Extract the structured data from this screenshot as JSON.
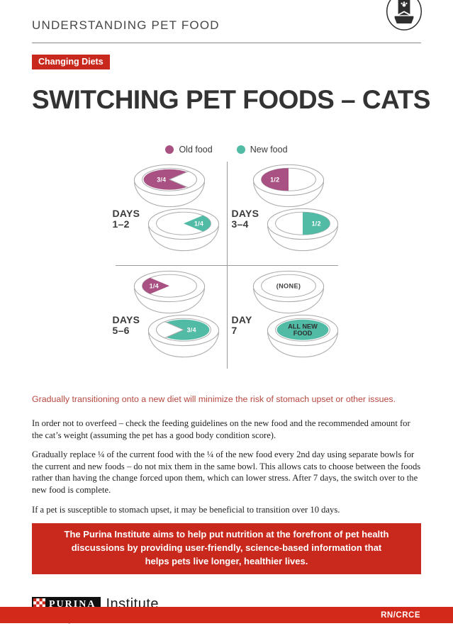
{
  "header": {
    "title": "UNDERSTANDING PET FOOD",
    "icon": "pet-food-bag-and-bowl-icon"
  },
  "badge": {
    "label": "Changing Diets"
  },
  "page_title": "SWITCHING PET FOODS – CATS",
  "legend": {
    "items": [
      {
        "label": "Old food",
        "color_key": "old"
      },
      {
        "label": "New food",
        "color_key": "new"
      }
    ]
  },
  "diagram": {
    "quadrants": [
      {
        "label_line1": "DAYS",
        "label_line2": "1–2",
        "bowls": [
          {
            "color_key": "old",
            "value": 0.75,
            "side": "left",
            "label_lines": [
              "3/4"
            ],
            "label_style": "fraction"
          },
          {
            "color_key": "new",
            "value": 0.25,
            "side": "right",
            "label_lines": [
              "1/4"
            ],
            "label_style": "fraction"
          }
        ]
      },
      {
        "label_line1": "DAYS",
        "label_line2": "3–4",
        "bowls": [
          {
            "color_key": "old",
            "value": 0.5,
            "side": "left",
            "label_lines": [
              "1/2"
            ],
            "label_style": "fraction"
          },
          {
            "color_key": "new",
            "value": 0.5,
            "side": "right",
            "label_lines": [
              "1/2"
            ],
            "label_style": "fraction"
          }
        ]
      },
      {
        "label_line1": "DAYS",
        "label_line2": "5–6",
        "bowls": [
          {
            "color_key": "old",
            "value": 0.25,
            "side": "left",
            "label_lines": [
              "1/4"
            ],
            "label_style": "fraction"
          },
          {
            "color_key": "new",
            "value": 0.75,
            "side": "right",
            "label_lines": [
              "3/4"
            ],
            "label_style": "fraction"
          }
        ]
      },
      {
        "label_line1": "DAY",
        "label_line2": "7",
        "bowls": [
          {
            "color_key": "old",
            "value": 0,
            "side": "none",
            "label_lines": [
              "(NONE)"
            ],
            "label_style": "empty"
          },
          {
            "color_key": "new",
            "value": 1,
            "side": "full",
            "label_lines": [
              "ALL NEW",
              "FOOD"
            ],
            "label_style": "full"
          }
        ]
      }
    ]
  },
  "highlight": "Gradually transitioning onto a new diet will minimize the risk of stomach upset or other issues.",
  "body": {
    "paragraphs": [
      "In order not to overfeed – check the feeding guidelines on the new food and the recommended amount for the cat’s weight (assuming the pet has a good body condition score).",
      "Gradually replace ¼ of the current food with the ¼ of the new food every 2nd day using separate bowls for the current and new foods – do not mix them in the same bowl. This allows cats to choose between the foods rather than having the change forced upon them, which can lower stress. After 7 days, the switch over to the new food is complete.",
      "If a pet is susceptible to stomach upset, it may be beneficial to transition over 10 days."
    ]
  },
  "banner": {
    "text": "The Purina Institute aims to help put nutrition at the forefront of pet health discussions by providing user-friendly, science-based information that helps pets live longer, healthier lives."
  },
  "footer": {
    "brand": "PURINA",
    "brand_suffix": "Institute",
    "tagline": "Advancing Science for Pet Health",
    "checkerboard_icon": "purina-checkerboard-icon",
    "doc_code": "RN/CRCE"
  },
  "colors": {
    "old": "#a85182",
    "new": "#52bba6",
    "outline": "#a9a9a9",
    "fraction_text": "#ffffff",
    "empty_text": "#3f3f3f",
    "full_text": "#2e2e2e",
    "brand_red": "#c9281c",
    "bottom_bar_red": "#d2291a",
    "highlight_text": "#b5483f"
  }
}
